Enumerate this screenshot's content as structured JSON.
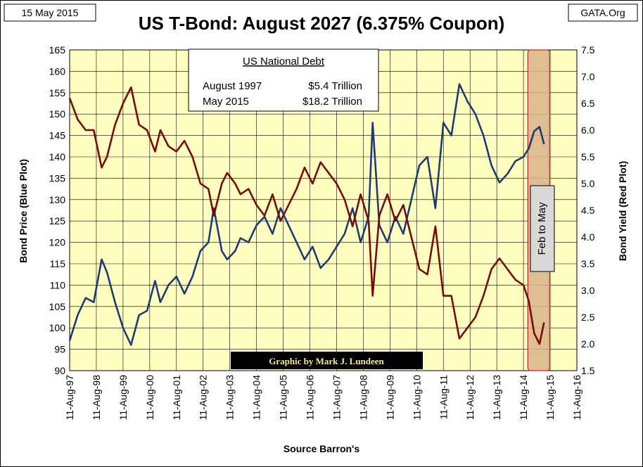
{
  "header": {
    "date": "15 May 2015",
    "source": "GATA.Org"
  },
  "chart_data": {
    "type": "line",
    "title": "US T-Bond: August 2027 (6.375% Coupon)",
    "xlabel": "Source Barron's",
    "ylabel_left": "Bond Price   (Blue Plot)",
    "ylabel_right": "Bond Yield  (Red Plot)",
    "ylim_left": [
      90,
      165
    ],
    "ylim_right": [
      1.5,
      7.5
    ],
    "yticks_left": [
      "90",
      "95",
      "100",
      "105",
      "110",
      "115",
      "120",
      "125",
      "130",
      "135",
      "140",
      "145",
      "150",
      "155",
      "160",
      "165"
    ],
    "yticks_right": [
      "1.5",
      "2.0",
      "2.5",
      "3.0",
      "3.5",
      "4.0",
      "4.5",
      "5.0",
      "5.5",
      "6.0",
      "6.5",
      "7.0",
      "7.5"
    ],
    "xticks": [
      "11-Aug-97",
      "11-Aug-98",
      "11-Aug-99",
      "11-Aug-00",
      "11-Aug-01",
      "11-Aug-02",
      "11-Aug-03",
      "11-Aug-04",
      "11-Aug-05",
      "11-Aug-06",
      "11-Aug-07",
      "11-Aug-08",
      "11-Aug-09",
      "11-Aug-10",
      "11-Aug-11",
      "11-Aug-12",
      "11-Aug-13",
      "11-Aug-14",
      "11-Aug-15",
      "11-Aug-16"
    ],
    "grid": true,
    "colors": {
      "price": "#1f3b73",
      "yield": "#7a0a0a",
      "plot_bg": "#ffffc0",
      "highlight": "#d9b48a",
      "highlight_border": "#d04040"
    },
    "annotation_box": {
      "heading": "US National Debt",
      "rows": [
        {
          "label": "August 1997",
          "value": "$5.4 Trillion"
        },
        {
          "label": "May 2015",
          "value": "$18.2 Trillion"
        }
      ]
    },
    "highlight_label": "Feb to May",
    "credit": "Graphic by Mark J. Lundeen",
    "series": [
      {
        "name": "Bond Price",
        "axis": "left",
        "x": [
          1997.6,
          1997.9,
          1998.2,
          1998.5,
          1998.8,
          1999.0,
          1999.3,
          1999.6,
          1999.9,
          2000.2,
          2000.5,
          2000.8,
          2001.0,
          2001.3,
          2001.6,
          2001.9,
          2002.2,
          2002.5,
          2002.8,
          2003.0,
          2003.3,
          2003.5,
          2003.8,
          2004.0,
          2004.3,
          2004.6,
          2004.9,
          2005.2,
          2005.5,
          2005.8,
          2006.1,
          2006.4,
          2006.7,
          2007.0,
          2007.3,
          2007.6,
          2007.9,
          2008.2,
          2008.5,
          2008.8,
          2008.95,
          2009.2,
          2009.5,
          2009.8,
          2010.1,
          2010.4,
          2010.7,
          2011.0,
          2011.3,
          2011.6,
          2011.9,
          2012.2,
          2012.5,
          2012.8,
          2013.1,
          2013.4,
          2013.7,
          2014.0,
          2014.3,
          2014.6,
          2014.8,
          2015.0,
          2015.2,
          2015.37
        ],
        "values": [
          97,
          103,
          107,
          106,
          116,
          113,
          106,
          100,
          96,
          103,
          104,
          111,
          106,
          110,
          112,
          108,
          112,
          118,
          120,
          128,
          118,
          116,
          118,
          121,
          120,
          124,
          126,
          122,
          128,
          124,
          120,
          116,
          119,
          114,
          116,
          119,
          122,
          128,
          120,
          126,
          148,
          124,
          120,
          126,
          122,
          130,
          138,
          140,
          128,
          148,
          145,
          157,
          153,
          150,
          145,
          138,
          134,
          136,
          139,
          140,
          142,
          146,
          147,
          143
        ]
      },
      {
        "name": "Bond Yield",
        "axis": "right",
        "x": [
          1997.6,
          1997.9,
          1998.2,
          1998.5,
          1998.8,
          1999.0,
          1999.3,
          1999.6,
          1999.9,
          2000.2,
          2000.5,
          2000.8,
          2001.0,
          2001.3,
          2001.6,
          2001.9,
          2002.2,
          2002.5,
          2002.8,
          2003.0,
          2003.3,
          2003.5,
          2003.8,
          2004.0,
          2004.3,
          2004.6,
          2004.9,
          2005.2,
          2005.5,
          2005.8,
          2006.1,
          2006.4,
          2006.7,
          2007.0,
          2007.3,
          2007.6,
          2007.9,
          2008.2,
          2008.5,
          2008.8,
          2008.95,
          2009.2,
          2009.5,
          2009.8,
          2010.1,
          2010.4,
          2010.7,
          2011.0,
          2011.3,
          2011.6,
          2011.9,
          2012.2,
          2012.5,
          2012.8,
          2013.1,
          2013.4,
          2013.7,
          2014.0,
          2014.3,
          2014.6,
          2014.8,
          2015.0,
          2015.2,
          2015.37
        ],
        "values": [
          6.6,
          6.2,
          6.0,
          6.0,
          5.3,
          5.5,
          6.1,
          6.5,
          6.8,
          6.1,
          6.0,
          5.6,
          6.0,
          5.7,
          5.6,
          5.8,
          5.5,
          5.0,
          4.9,
          4.4,
          5.0,
          5.2,
          5.0,
          4.8,
          4.9,
          4.6,
          4.4,
          4.8,
          4.3,
          4.6,
          4.9,
          5.3,
          5.0,
          5.4,
          5.2,
          5.0,
          4.7,
          4.2,
          4.8,
          4.3,
          2.9,
          4.4,
          4.8,
          4.3,
          4.6,
          4.0,
          3.4,
          3.3,
          4.2,
          2.9,
          2.9,
          2.1,
          2.3,
          2.5,
          2.9,
          3.4,
          3.6,
          3.4,
          3.2,
          3.1,
          2.8,
          2.2,
          2.0,
          2.4
        ]
      }
    ]
  }
}
